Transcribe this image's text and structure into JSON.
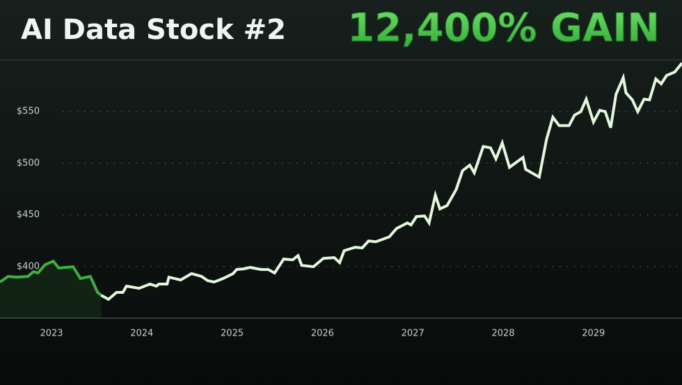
{
  "chart_data": {
    "type": "line",
    "title": "AI Data Stock #2",
    "subtitle": "12,400% GAIN",
    "xlim": [
      2022.43,
      2029.98
    ],
    "xticks": [
      2023,
      2024,
      2025,
      2026,
      2027,
      2028,
      2029
    ],
    "ylim": [
      350,
      600
    ],
    "yticks": [
      {
        "value": 400,
        "label": "$400"
      },
      {
        "value": 450,
        "label": "$450"
      },
      {
        "value": 500,
        "label": "$500"
      },
      {
        "value": 550,
        "label": "$550"
      }
    ],
    "grid": true,
    "series": [
      {
        "color": "#3fae3f",
        "area": true,
        "x": [
          2022.43,
          2022.52,
          2022.62,
          2022.74,
          2022.8,
          2022.85,
          2022.93,
          2023.02,
          2023.08,
          2023.24,
          2023.32,
          2023.43,
          2023.51,
          2023.55
        ],
        "values": [
          385.0,
          390.4,
          389.7,
          390.4,
          395.1,
          393.7,
          401.8,
          405.2,
          398.5,
          399.8,
          388.4,
          390.4,
          374.9,
          372.2
        ]
      },
      {
        "color": "#e2f7dc",
        "area": false,
        "x": [
          2023.55,
          2023.63,
          2023.72,
          2023.79,
          2023.83,
          2023.97,
          2024.09,
          2024.16,
          2024.19,
          2024.28,
          2024.3,
          2024.43,
          2024.55,
          2024.66,
          2024.73,
          2024.8,
          2024.9,
          2025.01,
          2025.05,
          2025.13,
          2025.2,
          2025.32,
          2025.4,
          2025.47,
          2025.57,
          2025.67,
          2025.73,
          2025.77,
          2025.9,
          2026.01,
          2026.13,
          2026.19,
          2026.24,
          2026.36,
          2026.44,
          2026.51,
          2026.59,
          2026.74,
          2026.82,
          2026.94,
          2026.98,
          2027.04,
          2027.13,
          2027.18,
          2027.25,
          2027.3,
          2027.38,
          2027.48,
          2027.55,
          2027.63,
          2027.68,
          2027.78,
          2027.86,
          2027.92,
          2027.99,
          2028.07,
          2028.22,
          2028.25,
          2028.4,
          2028.48,
          2028.55,
          2028.62,
          2028.73,
          2028.79,
          2028.86,
          2028.92,
          2029.0,
          2029.07,
          2029.13,
          2029.19,
          2029.25,
          2029.33,
          2029.36,
          2029.43,
          2029.49,
          2029.56,
          2029.62,
          2029.69,
          2029.75,
          2029.81,
          2029.9,
          2029.98
        ],
        "values": [
          372.2,
          368.2,
          374.9,
          374.9,
          381.0,
          378.9,
          383.0,
          381.0,
          383.0,
          383.0,
          389.7,
          387.0,
          393.1,
          390.4,
          386.3,
          385.0,
          388.4,
          393.1,
          397.1,
          397.8,
          399.1,
          397.1,
          397.1,
          393.7,
          407.2,
          406.5,
          410.6,
          401.1,
          399.8,
          407.9,
          408.6,
          403.8,
          415.3,
          418.6,
          418.0,
          424.7,
          424.0,
          428.7,
          436.8,
          442.2,
          440.2,
          448.3,
          448.9,
          442.2,
          469.1,
          455.7,
          459.0,
          474.5,
          492.7,
          498.1,
          490.7,
          516.2,
          514.9,
          504.1,
          519.6,
          496.0,
          505.5,
          494.0,
          486.6,
          523.0,
          544.5,
          536.4,
          536.4,
          546.5,
          549.9,
          562.0,
          539.8,
          551.2,
          549.9,
          534.4,
          566.7,
          582.9,
          568.1,
          561.3,
          549.9,
          562.0,
          561.3,
          581.5,
          576.8,
          584.9,
          588.2,
          597.0
        ]
      }
    ]
  }
}
